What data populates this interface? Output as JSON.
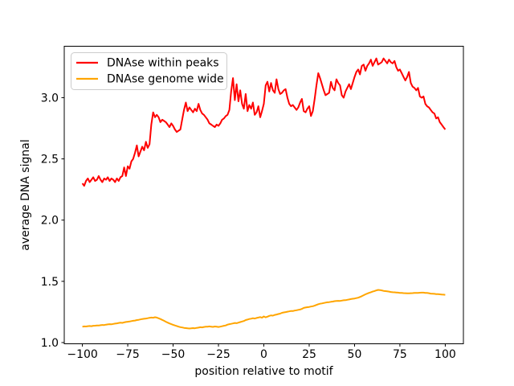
{
  "figure": {
    "background": "#ffffff",
    "plot_border_color": "#000000"
  },
  "chart_data": {
    "type": "line",
    "title": "",
    "xlabel": "position relative to motif",
    "ylabel": "average DNA signal",
    "xlim": [
      -110,
      110
    ],
    "ylim": [
      0.99,
      3.42
    ],
    "grid": false,
    "legend": {
      "position": "upper left",
      "border_color": "#cccccc"
    },
    "xticks": {
      "values": [
        -100,
        -75,
        -50,
        -25,
        0,
        25,
        50,
        75,
        100
      ],
      "labels": [
        "−100",
        "−75",
        "−50",
        "−25",
        "0",
        "25",
        "50",
        "75",
        "100"
      ]
    },
    "yticks": {
      "values": [
        1.0,
        1.5,
        2.0,
        2.5,
        3.0
      ],
      "labels": [
        "1.0",
        "1.5",
        "2.0",
        "2.5",
        "3.0"
      ]
    },
    "x_start": -100,
    "x_step": 1,
    "series": [
      {
        "name": "DNAse within peaks",
        "color": "#ff0000",
        "values": [
          2.3,
          2.28,
          2.32,
          2.34,
          2.31,
          2.33,
          2.35,
          2.32,
          2.33,
          2.36,
          2.33,
          2.31,
          2.34,
          2.33,
          2.35,
          2.32,
          2.34,
          2.33,
          2.31,
          2.34,
          2.32,
          2.35,
          2.36,
          2.43,
          2.36,
          2.44,
          2.42,
          2.48,
          2.5,
          2.55,
          2.61,
          2.52,
          2.56,
          2.6,
          2.57,
          2.64,
          2.59,
          2.62,
          2.78,
          2.88,
          2.84,
          2.86,
          2.84,
          2.8,
          2.82,
          2.81,
          2.8,
          2.78,
          2.76,
          2.79,
          2.77,
          2.74,
          2.72,
          2.73,
          2.74,
          2.82,
          2.9,
          2.96,
          2.89,
          2.92,
          2.9,
          2.88,
          2.91,
          2.89,
          2.95,
          2.9,
          2.87,
          2.86,
          2.84,
          2.82,
          2.79,
          2.78,
          2.77,
          2.76,
          2.78,
          2.77,
          2.79,
          2.82,
          2.83,
          2.85,
          2.86,
          2.9,
          3.05,
          3.16,
          2.98,
          3.11,
          2.97,
          3.06,
          2.95,
          2.91,
          3.03,
          2.89,
          2.94,
          2.91,
          2.96,
          2.86,
          2.88,
          2.93,
          2.84,
          2.89,
          2.95,
          3.1,
          3.13,
          3.05,
          3.12,
          3.06,
          3.04,
          3.15,
          3.07,
          3.03,
          3.04,
          3.06,
          3.07,
          3.0,
          2.95,
          2.93,
          2.94,
          2.92,
          2.9,
          2.92,
          2.96,
          2.99,
          2.89,
          2.88,
          2.91,
          2.93,
          2.85,
          2.89,
          2.99,
          3.1,
          3.2,
          3.16,
          3.11,
          3.06,
          3.02,
          3.03,
          3.04,
          3.13,
          3.08,
          3.06,
          3.15,
          3.12,
          3.1,
          3.02,
          3.0,
          3.05,
          3.08,
          3.11,
          3.07,
          3.12,
          3.17,
          3.21,
          3.23,
          3.19,
          3.26,
          3.27,
          3.22,
          3.26,
          3.28,
          3.31,
          3.26,
          3.29,
          3.32,
          3.27,
          3.28,
          3.29,
          3.32,
          3.3,
          3.28,
          3.31,
          3.29,
          3.28,
          3.3,
          3.25,
          3.22,
          3.23,
          3.2,
          3.17,
          3.14,
          3.17,
          3.21,
          3.12,
          3.09,
          3.08,
          3.06,
          3.08,
          3.01,
          3.0,
          3.01,
          2.95,
          2.93,
          2.92,
          2.9,
          2.88,
          2.87,
          2.83,
          2.84,
          2.8,
          2.78,
          2.76,
          2.74
        ]
      },
      {
        "name": "DNAse genome wide",
        "color": "#ffa500",
        "values": [
          1.13,
          1.132,
          1.131,
          1.134,
          1.135,
          1.134,
          1.137,
          1.138,
          1.14,
          1.139,
          1.142,
          1.144,
          1.143,
          1.146,
          1.148,
          1.15,
          1.149,
          1.152,
          1.155,
          1.157,
          1.16,
          1.162,
          1.161,
          1.165,
          1.168,
          1.17,
          1.172,
          1.175,
          1.178,
          1.18,
          1.184,
          1.186,
          1.189,
          1.192,
          1.194,
          1.196,
          1.199,
          1.202,
          1.204,
          1.203,
          1.207,
          1.204,
          1.198,
          1.192,
          1.185,
          1.178,
          1.17,
          1.163,
          1.156,
          1.15,
          1.145,
          1.14,
          1.135,
          1.13,
          1.126,
          1.123,
          1.12,
          1.118,
          1.116,
          1.115,
          1.116,
          1.118,
          1.117,
          1.12,
          1.122,
          1.125,
          1.124,
          1.127,
          1.129,
          1.13,
          1.132,
          1.13,
          1.128,
          1.131,
          1.129,
          1.127,
          1.13,
          1.133,
          1.137,
          1.14,
          1.146,
          1.15,
          1.153,
          1.156,
          1.16,
          1.158,
          1.163,
          1.167,
          1.172,
          1.176,
          1.184,
          1.188,
          1.192,
          1.195,
          1.199,
          1.196,
          1.201,
          1.204,
          1.208,
          1.203,
          1.213,
          1.206,
          1.211,
          1.218,
          1.222,
          1.22,
          1.226,
          1.229,
          1.233,
          1.236,
          1.243,
          1.246,
          1.249,
          1.252,
          1.255,
          1.258,
          1.257,
          1.261,
          1.264,
          1.267,
          1.27,
          1.275,
          1.283,
          1.286,
          1.289,
          1.291,
          1.294,
          1.297,
          1.301,
          1.307,
          1.313,
          1.317,
          1.32,
          1.323,
          1.326,
          1.329,
          1.33,
          1.333,
          1.335,
          1.338,
          1.34,
          1.341,
          1.34,
          1.343,
          1.345,
          1.346,
          1.349,
          1.352,
          1.355,
          1.358,
          1.36,
          1.363,
          1.366,
          1.372,
          1.379,
          1.387,
          1.394,
          1.4,
          1.406,
          1.411,
          1.416,
          1.421,
          1.426,
          1.43,
          1.429,
          1.426,
          1.422,
          1.42,
          1.418,
          1.416,
          1.413,
          1.411,
          1.41,
          1.409,
          1.408,
          1.406,
          1.405,
          1.404,
          1.403,
          1.402,
          1.402,
          1.403,
          1.404,
          1.405,
          1.406,
          1.405,
          1.407,
          1.408,
          1.408,
          1.406,
          1.405,
          1.403,
          1.4,
          1.399,
          1.398,
          1.396,
          1.395,
          1.394,
          1.392,
          1.391,
          1.39
        ]
      }
    ]
  }
}
